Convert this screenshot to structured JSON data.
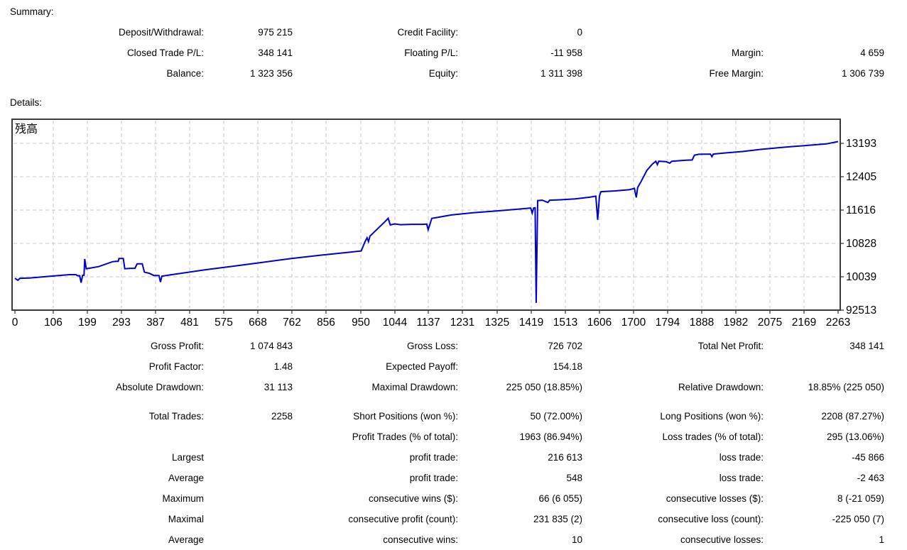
{
  "summary": {
    "title": "Summary:",
    "rows": [
      [
        "Deposit/Withdrawal:",
        "975 215",
        "Credit Facility:",
        "0",
        "",
        ""
      ],
      [
        "Closed Trade P/L:",
        "348 141",
        "Floating P/L:",
        "-11 958",
        "Margin:",
        "4 659"
      ],
      [
        "Balance:",
        "1 323 356",
        "Equity:",
        "1 311 398",
        "Free Margin:",
        "1 306 739"
      ]
    ]
  },
  "details": {
    "title": "Details:",
    "groups": [
      [
        [
          "Gross Profit:",
          "1 074 843",
          "Gross Loss:",
          "726 702",
          "Total Net Profit:",
          "348 141"
        ],
        [
          "Profit Factor:",
          "1.48",
          "Expected Payoff:",
          "154.18",
          "",
          ""
        ],
        [
          "Absolute Drawdown:",
          "31 113",
          "Maximal Drawdown:",
          "225 050 (18.85%)",
          "Relative Drawdown:",
          "18.85% (225 050)"
        ]
      ],
      [
        [
          "Total Trades:",
          "2258",
          "Short Positions (won %):",
          "50 (72.00%)",
          "Long Positions (won %):",
          "2208 (87.27%)"
        ],
        [
          "",
          "",
          "Profit Trades (% of total):",
          "1963 (86.94%)",
          "Loss trades (% of total):",
          "295 (13.06%)"
        ],
        [
          "Largest",
          "",
          "profit trade:",
          "216 613",
          "loss trade:",
          "-45 866"
        ],
        [
          "Average",
          "",
          "profit trade:",
          "548",
          "loss trade:",
          "-2 463"
        ],
        [
          "Maximum",
          "",
          "consecutive wins ($):",
          "66 (6 055)",
          "consecutive losses ($):",
          "8 (-21 059)"
        ],
        [
          "Maximal",
          "",
          "consecutive profit (count):",
          "231 835 (2)",
          "consecutive loss (count):",
          "-225 050 (7)"
        ],
        [
          "Average",
          "",
          "consecutive wins:",
          "10",
          "consecutive losses:",
          "1"
        ]
      ]
    ]
  },
  "chart_data": {
    "type": "line",
    "title": "残高",
    "legend_label": "残高",
    "legend_position": "top-left",
    "grid": true,
    "line_color": "#0000C8",
    "grid_color": "#c6c6c6",
    "border_color": "#3a3a3a",
    "x_range": [
      0,
      2263
    ],
    "x_tick_labels": [
      0,
      106,
      199,
      293,
      387,
      481,
      575,
      668,
      762,
      856,
      950,
      1044,
      1137,
      1231,
      1325,
      1419,
      1513,
      1606,
      1700,
      1794,
      1888,
      1982,
      2075,
      2169,
      2263
    ],
    "y_tick_labels": [
      "13193",
      "12405",
      "11616",
      "10828",
      "10039",
      "92513"
    ],
    "y_axis_values": [
      13193,
      12405,
      11616,
      10828,
      10039,
      9251.3
    ],
    "series": [
      {
        "name": "残高",
        "points": [
          [
            0,
            10005
          ],
          [
            8,
            9955
          ],
          [
            14,
            10005
          ],
          [
            40,
            10010
          ],
          [
            80,
            10040
          ],
          [
            120,
            10070
          ],
          [
            150,
            10090
          ],
          [
            168,
            10090
          ],
          [
            172,
            10065
          ],
          [
            178,
            10065
          ],
          [
            182,
            9900
          ],
          [
            186,
            10075
          ],
          [
            190,
            10075
          ],
          [
            192,
            10460
          ],
          [
            196,
            10230
          ],
          [
            230,
            10280
          ],
          [
            268,
            10395
          ],
          [
            278,
            10405
          ],
          [
            284,
            10405
          ],
          [
            286,
            10470
          ],
          [
            298,
            10470
          ],
          [
            302,
            10230
          ],
          [
            318,
            10240
          ],
          [
            330,
            10240
          ],
          [
            336,
            10345
          ],
          [
            350,
            10345
          ],
          [
            356,
            10150
          ],
          [
            370,
            10120
          ],
          [
            382,
            10070
          ],
          [
            396,
            10070
          ],
          [
            400,
            9915
          ],
          [
            404,
            10055
          ],
          [
            440,
            10100
          ],
          [
            520,
            10200
          ],
          [
            600,
            10290
          ],
          [
            680,
            10380
          ],
          [
            760,
            10470
          ],
          [
            840,
            10550
          ],
          [
            920,
            10620
          ],
          [
            952,
            10650
          ],
          [
            962,
            10860
          ],
          [
            968,
            10960
          ],
          [
            972,
            10870
          ],
          [
            976,
            11000
          ],
          [
            1000,
            11200
          ],
          [
            1016,
            11330
          ],
          [
            1026,
            11420
          ],
          [
            1032,
            11265
          ],
          [
            1044,
            11290
          ],
          [
            1060,
            11270
          ],
          [
            1090,
            11280
          ],
          [
            1120,
            11280
          ],
          [
            1132,
            11285
          ],
          [
            1136,
            11150
          ],
          [
            1141,
            11285
          ],
          [
            1146,
            11420
          ],
          [
            1160,
            11440
          ],
          [
            1200,
            11500
          ],
          [
            1260,
            11555
          ],
          [
            1330,
            11600
          ],
          [
            1400,
            11650
          ],
          [
            1418,
            11665
          ],
          [
            1422,
            11545
          ],
          [
            1426,
            11665
          ],
          [
            1430,
            11670
          ],
          [
            1433,
            9420
          ],
          [
            1437,
            11840
          ],
          [
            1450,
            11850
          ],
          [
            1465,
            11795
          ],
          [
            1470,
            11850
          ],
          [
            1500,
            11860
          ],
          [
            1540,
            11880
          ],
          [
            1580,
            11920
          ],
          [
            1597,
            11945
          ],
          [
            1602,
            11385
          ],
          [
            1607,
            11950
          ],
          [
            1611,
            12050
          ],
          [
            1650,
            12070
          ],
          [
            1690,
            12100
          ],
          [
            1703,
            12130
          ],
          [
            1708,
            11915
          ],
          [
            1712,
            12150
          ],
          [
            1722,
            12300
          ],
          [
            1737,
            12550
          ],
          [
            1752,
            12700
          ],
          [
            1762,
            12770
          ],
          [
            1766,
            12690
          ],
          [
            1770,
            12770
          ],
          [
            1790,
            12760
          ],
          [
            1800,
            12725
          ],
          [
            1806,
            12770
          ],
          [
            1845,
            12795
          ],
          [
            1862,
            12800
          ],
          [
            1868,
            12915
          ],
          [
            1880,
            12935
          ],
          [
            1912,
            12940
          ],
          [
            1916,
            12880
          ],
          [
            1920,
            12940
          ],
          [
            1950,
            12965
          ],
          [
            2000,
            13000
          ],
          [
            2050,
            13050
          ],
          [
            2100,
            13090
          ],
          [
            2140,
            13120
          ],
          [
            2170,
            13140
          ],
          [
            2200,
            13160
          ],
          [
            2230,
            13180
          ],
          [
            2263,
            13235
          ]
        ]
      }
    ]
  }
}
